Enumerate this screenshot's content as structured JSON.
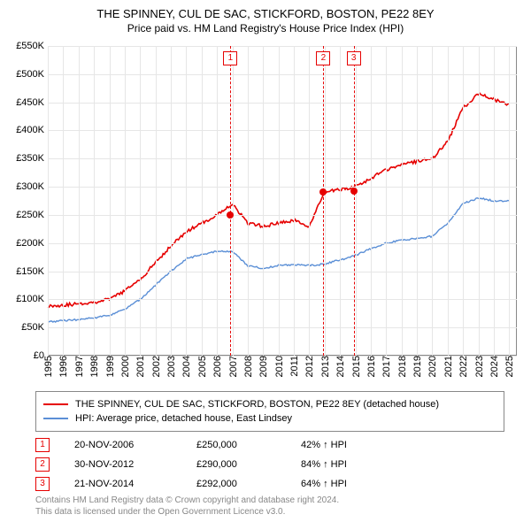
{
  "title": "THE SPINNEY, CUL DE SAC, STICKFORD, BOSTON, PE22 8EY",
  "subtitle": "Price paid vs. HM Land Registry's House Price Index (HPI)",
  "chart": {
    "type": "line",
    "background_color": "#ffffff",
    "grid_color": "#e6e6e6",
    "axis_color": "#888888",
    "xlim_years": [
      1995,
      2025.5
    ],
    "ylim": [
      0,
      550000
    ],
    "ytick_step": 50000,
    "yticks": [
      "£0",
      "£50K",
      "£100K",
      "£150K",
      "£200K",
      "£250K",
      "£300K",
      "£350K",
      "£400K",
      "£450K",
      "£500K",
      "£550K"
    ],
    "xticks": [
      "1995",
      "1996",
      "1997",
      "1998",
      "1999",
      "2000",
      "2001",
      "2002",
      "2003",
      "2004",
      "2005",
      "2006",
      "2007",
      "2008",
      "2009",
      "2010",
      "2011",
      "2012",
      "2013",
      "2014",
      "2015",
      "2016",
      "2017",
      "2018",
      "2019",
      "2020",
      "2021",
      "2022",
      "2023",
      "2024",
      "2025"
    ],
    "label_fontsize": 11,
    "series": [
      {
        "name": "property",
        "color": "#e60000",
        "width": 1.6,
        "label": "THE SPINNEY, CUL DE SAC, STICKFORD, BOSTON, PE22 8EY (detached house)",
        "points_yearly": [
          88,
          90,
          92,
          95,
          100,
          115,
          135,
          165,
          195,
          220,
          235,
          250,
          270,
          235,
          230,
          235,
          240,
          230,
          290,
          295,
          300,
          315,
          330,
          340,
          345,
          350,
          380,
          440,
          465,
          455,
          445
        ]
      },
      {
        "name": "hpi",
        "color": "#5b8fd6",
        "width": 1.4,
        "label": "HPI: Average price, detached house, East Lindsey",
        "points_yearly": [
          60,
          62,
          64,
          67,
          72,
          82,
          100,
          125,
          150,
          172,
          180,
          185,
          185,
          160,
          155,
          160,
          162,
          160,
          163,
          170,
          178,
          190,
          200,
          205,
          208,
          212,
          235,
          270,
          280,
          275,
          275
        ]
      }
    ],
    "events": [
      {
        "n": "1",
        "year": 2006.88,
        "value": 250000,
        "color": "#e60000",
        "date": "20-NOV-2006",
        "price": "£250,000",
        "delta": "42% ↑ HPI"
      },
      {
        "n": "2",
        "year": 2012.92,
        "value": 290000,
        "color": "#e60000",
        "date": "30-NOV-2012",
        "price": "£290,000",
        "delta": "84% ↑ HPI"
      },
      {
        "n": "3",
        "year": 2014.89,
        "value": 292000,
        "color": "#e60000",
        "date": "21-NOV-2014",
        "price": "£292,000",
        "delta": "64% ↑ HPI"
      }
    ]
  },
  "legend": {
    "row1_label": "THE SPINNEY, CUL DE SAC, STICKFORD, BOSTON, PE22 8EY (detached house)",
    "row2_label": "HPI: Average price, detached house, East Lindsey"
  },
  "footer": {
    "line1": "Contains HM Land Registry data © Crown copyright and database right 2024.",
    "line2": "This data is licensed under the Open Government Licence v3.0."
  }
}
